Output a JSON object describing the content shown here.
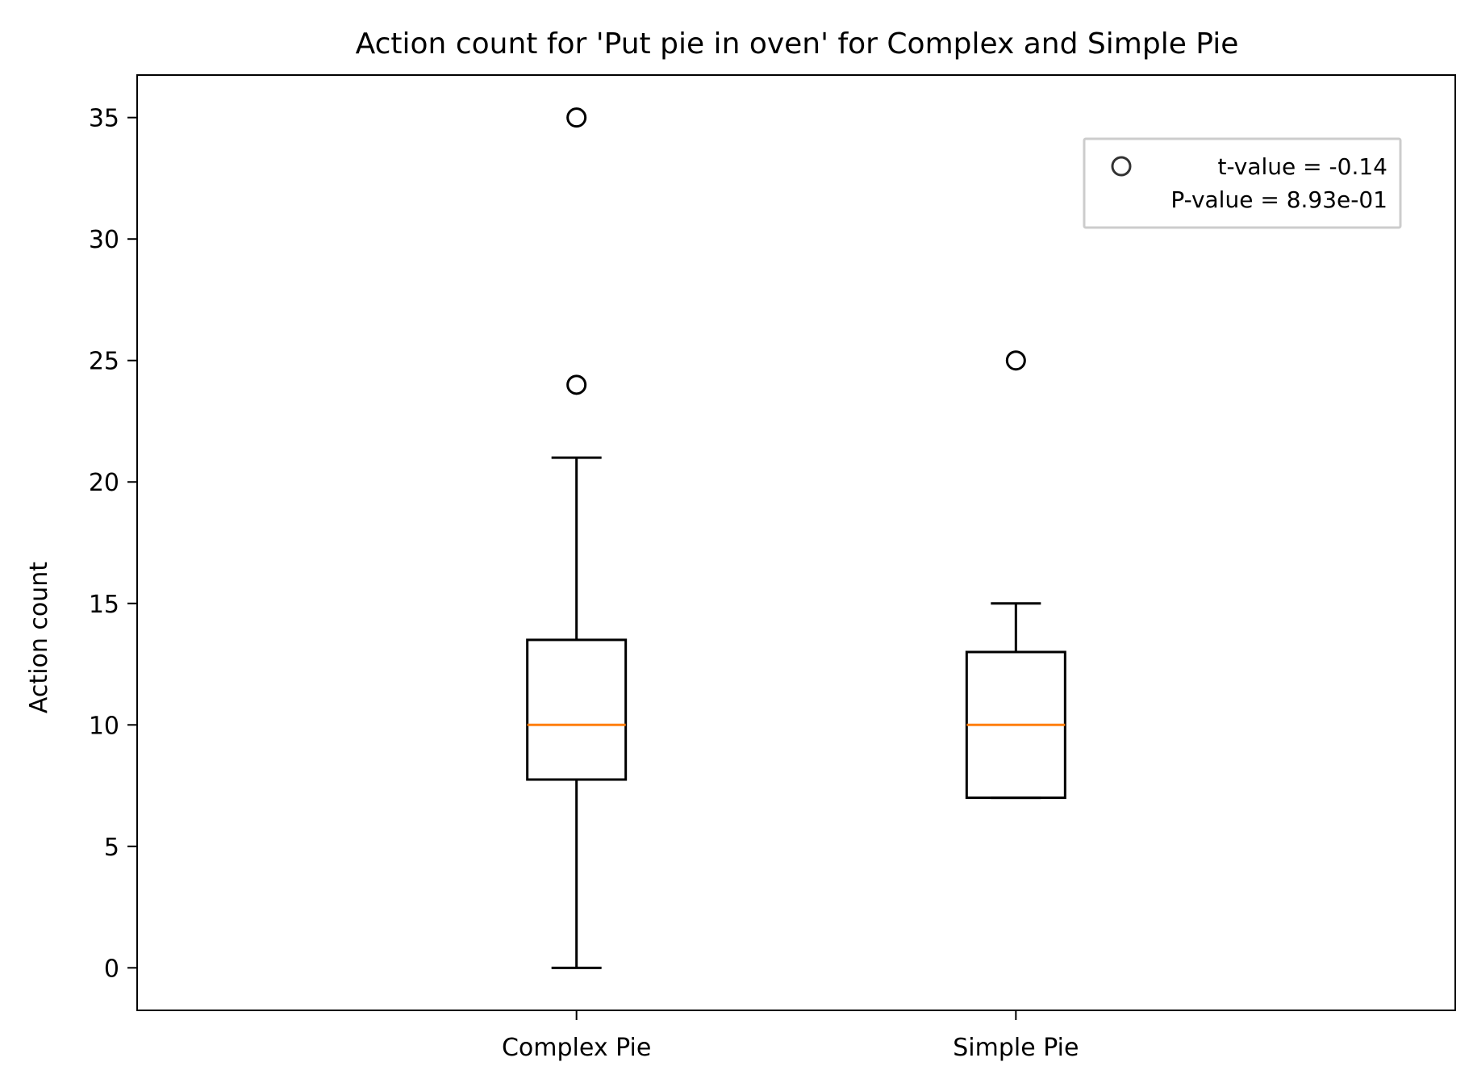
{
  "chart_data": {
    "type": "box",
    "title": "Action count for 'Put pie in oven' for Complex and Simple Pie",
    "xlabel": "",
    "ylabel": "Action count",
    "categories": [
      "Complex Pie",
      "Simple Pie"
    ],
    "boxes": [
      {
        "name": "Complex Pie",
        "whisker_low": 0,
        "q1": 7.75,
        "median": 10,
        "q3": 13.5,
        "whisker_high": 21,
        "outliers": [
          24,
          35
        ]
      },
      {
        "name": "Simple Pie",
        "whisker_low": 7,
        "q1": 7,
        "median": 10,
        "q3": 13,
        "whisker_high": 15,
        "outliers": [
          25
        ]
      }
    ],
    "ylim": [
      -1.75,
      36.75
    ],
    "yticks": [
      0,
      5,
      10,
      15,
      20,
      25,
      30,
      35
    ],
    "grid": false,
    "legend": {
      "placement": "upper right",
      "marker": "circle",
      "lines": [
        "t-value = -0.14",
        "P-value = 8.93e-01"
      ]
    },
    "colors": {
      "box": "#000000",
      "median": "#ff7f0e",
      "legend_border": "#cccccc",
      "legend_marker": "#333333"
    }
  }
}
